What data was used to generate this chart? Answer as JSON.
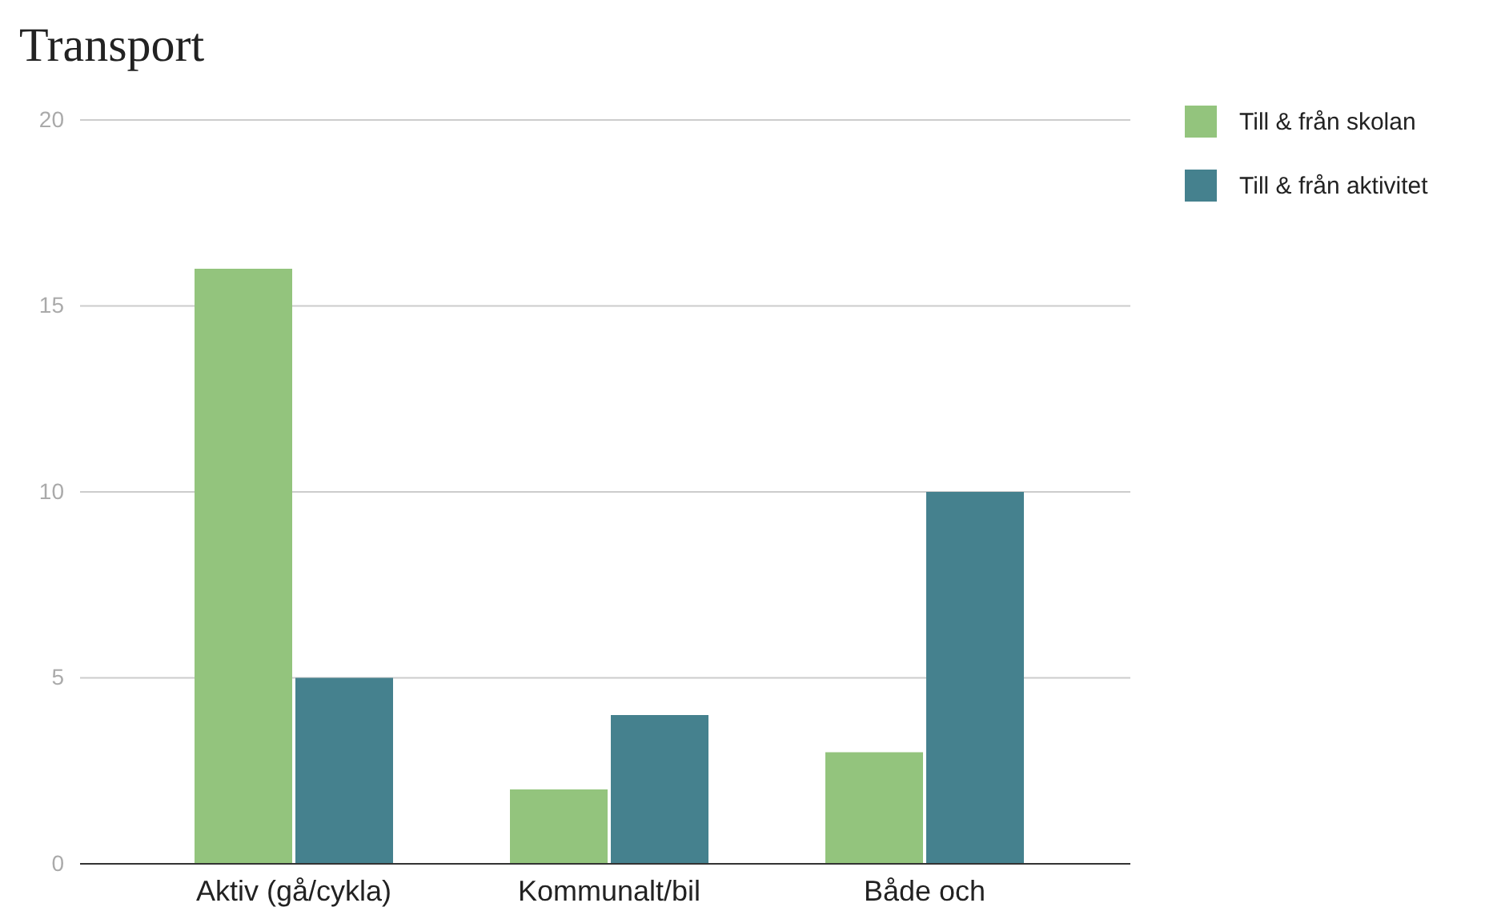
{
  "chart_data": {
    "type": "bar",
    "title": "Transport",
    "categories": [
      "Aktiv (gå/cykla)",
      "Kommunalt/bil",
      "Både och"
    ],
    "series": [
      {
        "name": "Till & från skolan",
        "color": "#93c47d",
        "values": [
          16,
          2,
          3
        ]
      },
      {
        "name": "Till & från aktivitet",
        "color": "#45818e",
        "values": [
          5,
          4,
          10
        ]
      }
    ],
    "ylim": [
      0,
      20
    ],
    "yticks": [
      0,
      5,
      10,
      15,
      20
    ],
    "grid": "y",
    "legend": "right"
  }
}
